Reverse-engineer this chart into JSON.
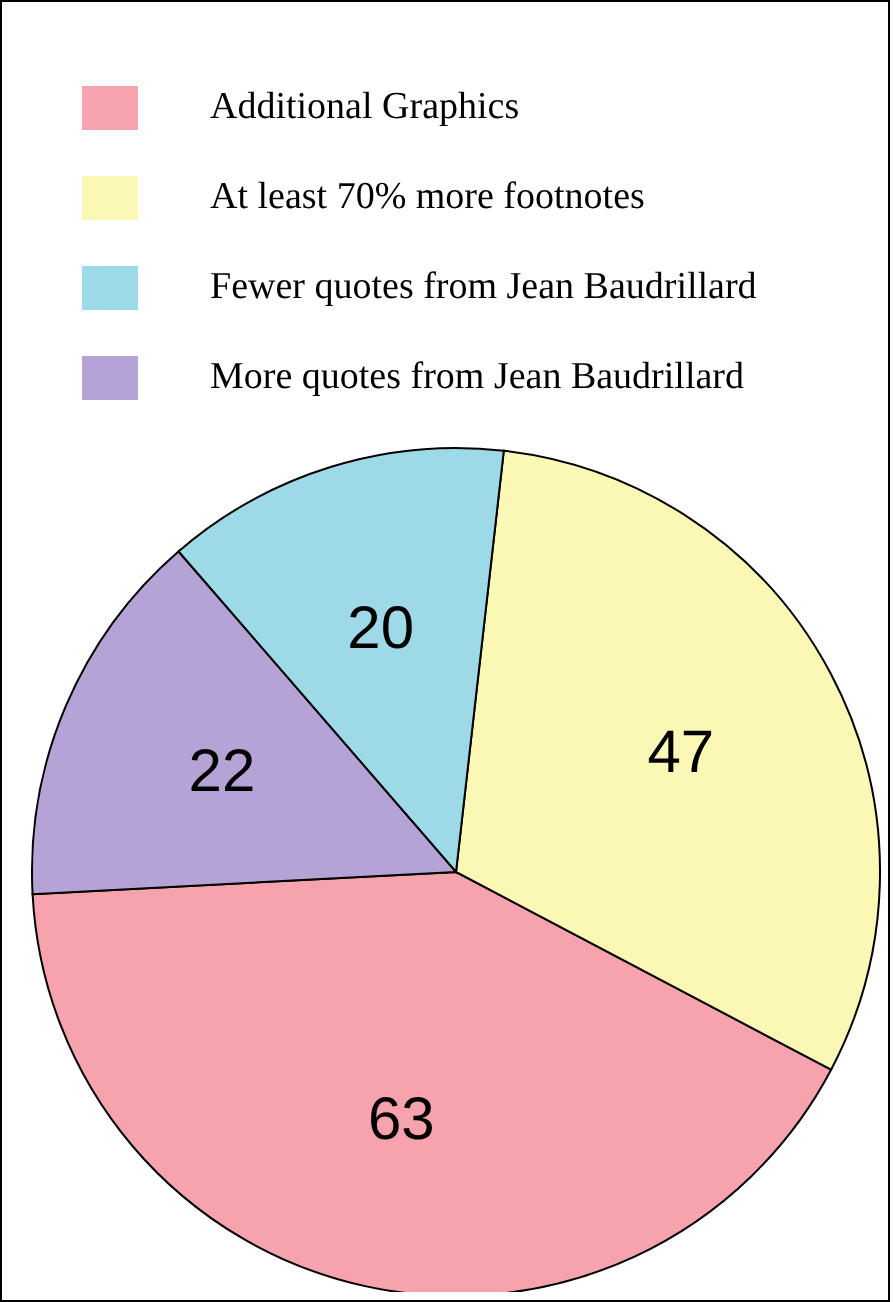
{
  "chart_data": {
    "type": "pie",
    "categories": [
      "Additional Graphics",
      "At least 70% more footnotes",
      "Fewer quotes from Jean Baudrillard",
      "More quotes from Jean Baudrillard"
    ],
    "values": [
      63,
      47,
      20,
      22
    ],
    "colors": [
      "#f7a3ad",
      "#fbf7b5",
      "#9ed9e8",
      "#b4a3d4"
    ],
    "data_labels": true,
    "legend": "top"
  }
}
